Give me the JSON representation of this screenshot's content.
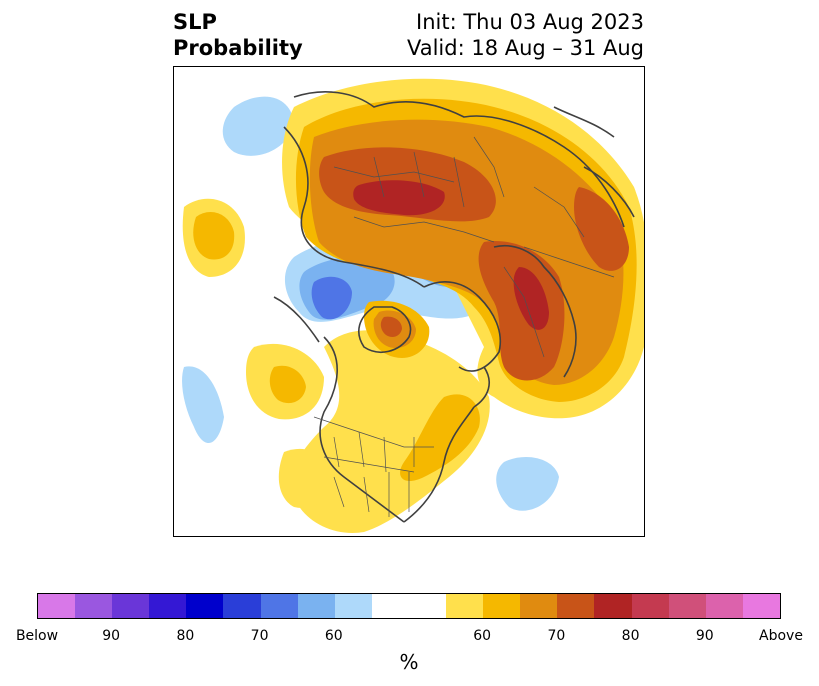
{
  "title": {
    "left_line1": "SLP",
    "left_line2": "Probability",
    "right_line1": "Init: Thu 03 Aug 2023",
    "right_line2": "Valid: 18 Aug – 31 Aug"
  },
  "colors": {
    "below": [
      "#d878e8",
      "#9a57e0",
      "#6a36d8",
      "#3418d4",
      "#0000cc",
      "#2a3ed8",
      "#4f75e6",
      "#7ab2f0",
      "#aed9fa"
    ],
    "neutral": "#ffffff",
    "above": [
      "#ffe04c",
      "#f5b800",
      "#e08b10",
      "#c85418",
      "#b02424",
      "#c43a50",
      "#d0507a",
      "#dc62ac",
      "#e878e0"
    ]
  },
  "colorbar": {
    "ticks": [
      "Below",
      "90",
      "80",
      "70",
      "60",
      "60",
      "70",
      "80",
      "90",
      "Above"
    ],
    "unit": "%"
  }
}
